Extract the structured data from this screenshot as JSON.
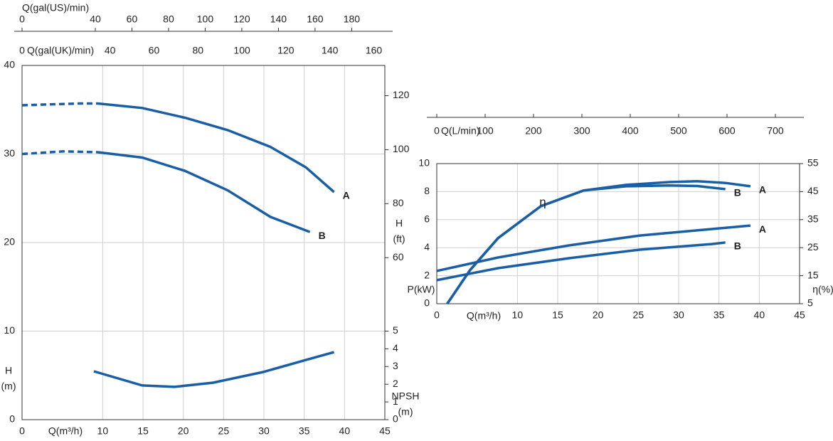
{
  "chart_data": [
    {
      "type": "line",
      "x_label": "Q(m³/h)",
      "xlim": [
        0,
        45
      ],
      "xticks": [
        0,
        10,
        15,
        20,
        25,
        30,
        35,
        40,
        45
      ],
      "ylim": [
        0,
        40
      ],
      "yticks": [
        0,
        10,
        20,
        30,
        40
      ],
      "y_label": [
        "H",
        "(m)"
      ],
      "y2lim": [
        0,
        131.2
      ],
      "y2ticks": [
        60,
        80,
        100,
        120
      ],
      "y2_label": [
        "H",
        "(ft)"
      ],
      "y3lim": [
        0,
        20
      ],
      "y3ticks": [
        0,
        1,
        2,
        3,
        4,
        5
      ],
      "y3_label": [
        "NPSH",
        "(m)"
      ],
      "top_axes": [
        {
          "label": "Q(gal(US)/min)",
          "lim": [
            0,
            198.1
          ],
          "ticks": [
            0,
            40,
            60,
            80,
            100,
            120,
            140,
            160,
            180
          ]
        },
        {
          "label": "Q(gal(UK)/min)",
          "lim": [
            0,
            165
          ],
          "ticks": [
            0,
            40,
            60,
            80,
            100,
            120,
            140,
            160
          ]
        }
      ],
      "grid": true,
      "series": [
        {
          "name": "A",
          "color": "#1a5fa6",
          "axis": "y",
          "segments": [
            {
              "style": "dashed",
              "x": [
                0,
                7,
                9.4
              ],
              "values": [
                35.5,
                35.7,
                35.7
              ]
            },
            {
              "style": "solid",
              "x": [
                9.4,
                14.9,
                20.2,
                25.5,
                30.8,
                35.2,
                38.7
              ],
              "values": [
                35.7,
                35.2,
                34.1,
                32.7,
                30.8,
                28.5,
                25.7
              ]
            }
          ]
        },
        {
          "name": "B",
          "color": "#1a5fa6",
          "axis": "y",
          "segments": [
            {
              "style": "dashed",
              "x": [
                0,
                5.2,
                9.4
              ],
              "values": [
                30.0,
                30.3,
                30.2
              ]
            },
            {
              "style": "solid",
              "x": [
                9.4,
                14.9,
                20.2,
                25.5,
                30.8,
                35.7
              ],
              "values": [
                30.2,
                29.6,
                28.1,
                25.9,
                22.9,
                21.2
              ]
            }
          ]
        },
        {
          "color": "#1a5fa6",
          "axis": "y3",
          "segments": [
            {
              "style": "solid",
              "x": [
                8.9,
                14.9,
                18.9,
                23.7,
                29.9,
                35.2,
                38.7
              ],
              "values": [
                2.73,
                1.93,
                1.85,
                2.09,
                2.69,
                3.37,
                3.81
              ]
            }
          ]
        }
      ]
    },
    {
      "type": "line",
      "x_label": "Q(m³/h)",
      "xlim": [
        0,
        45
      ],
      "xticks": [
        0,
        10,
        15,
        20,
        25,
        30,
        35,
        40,
        45
      ],
      "ylim": [
        0,
        10
      ],
      "yticks": [
        0,
        2,
        4,
        6,
        8,
        10
      ],
      "y_label": "P(kW)",
      "y2lim": [
        5,
        55
      ],
      "y2ticks": [
        5,
        15,
        25,
        35,
        45,
        55
      ],
      "y2_label": "η(%)",
      "top_axes": [
        {
          "label": "Q(L/min)",
          "lim": [
            0,
            750
          ],
          "ticks": [
            0,
            100,
            200,
            300,
            400,
            500,
            600,
            700
          ]
        }
      ],
      "grid": true,
      "annotations": [
        {
          "text": "η"
        }
      ],
      "series": [
        {
          "name": "A",
          "color": "#1a5fa6",
          "axis": "y2",
          "segments": [
            {
              "style": "solid",
              "x": [
                1.3,
                4.1,
                7.6,
                12.9,
                18.2,
                23.5,
                28.8,
                32.3,
                35.8,
                38.9
              ],
              "values": [
                5,
                16.9,
                28.4,
                39.8,
                45.4,
                47.4,
                48.4,
                48.7,
                48.1,
                46.9
              ]
            }
          ]
        },
        {
          "name": "B",
          "color": "#1a5fa6",
          "axis": "y2",
          "segments": [
            {
              "style": "solid",
              "x": [
                1.3,
                4.1,
                7.6,
                12.9,
                18.2,
                23.5,
                28.8,
                32.3,
                35.8
              ],
              "values": [
                5,
                16.9,
                28.4,
                39.8,
                45.4,
                46.9,
                47.2,
                47.0,
                45.9
              ]
            }
          ]
        },
        {
          "name": "A",
          "color": "#1a5fa6",
          "axis": "y",
          "segments": [
            {
              "style": "solid",
              "x": [
                0,
                7.6,
                16.4,
                25.2,
                34.1,
                38.9
              ],
              "values": [
                2.34,
                3.3,
                4.16,
                4.87,
                5.33,
                5.58
              ]
            }
          ]
        },
        {
          "name": "B",
          "color": "#1a5fa6",
          "axis": "y",
          "segments": [
            {
              "style": "solid",
              "x": [
                0,
                7.6,
                16.4,
                25.2,
                34.1,
                35.8
              ],
              "values": [
                1.68,
                2.54,
                3.25,
                3.86,
                4.26,
                4.37
              ]
            }
          ]
        }
      ]
    }
  ]
}
